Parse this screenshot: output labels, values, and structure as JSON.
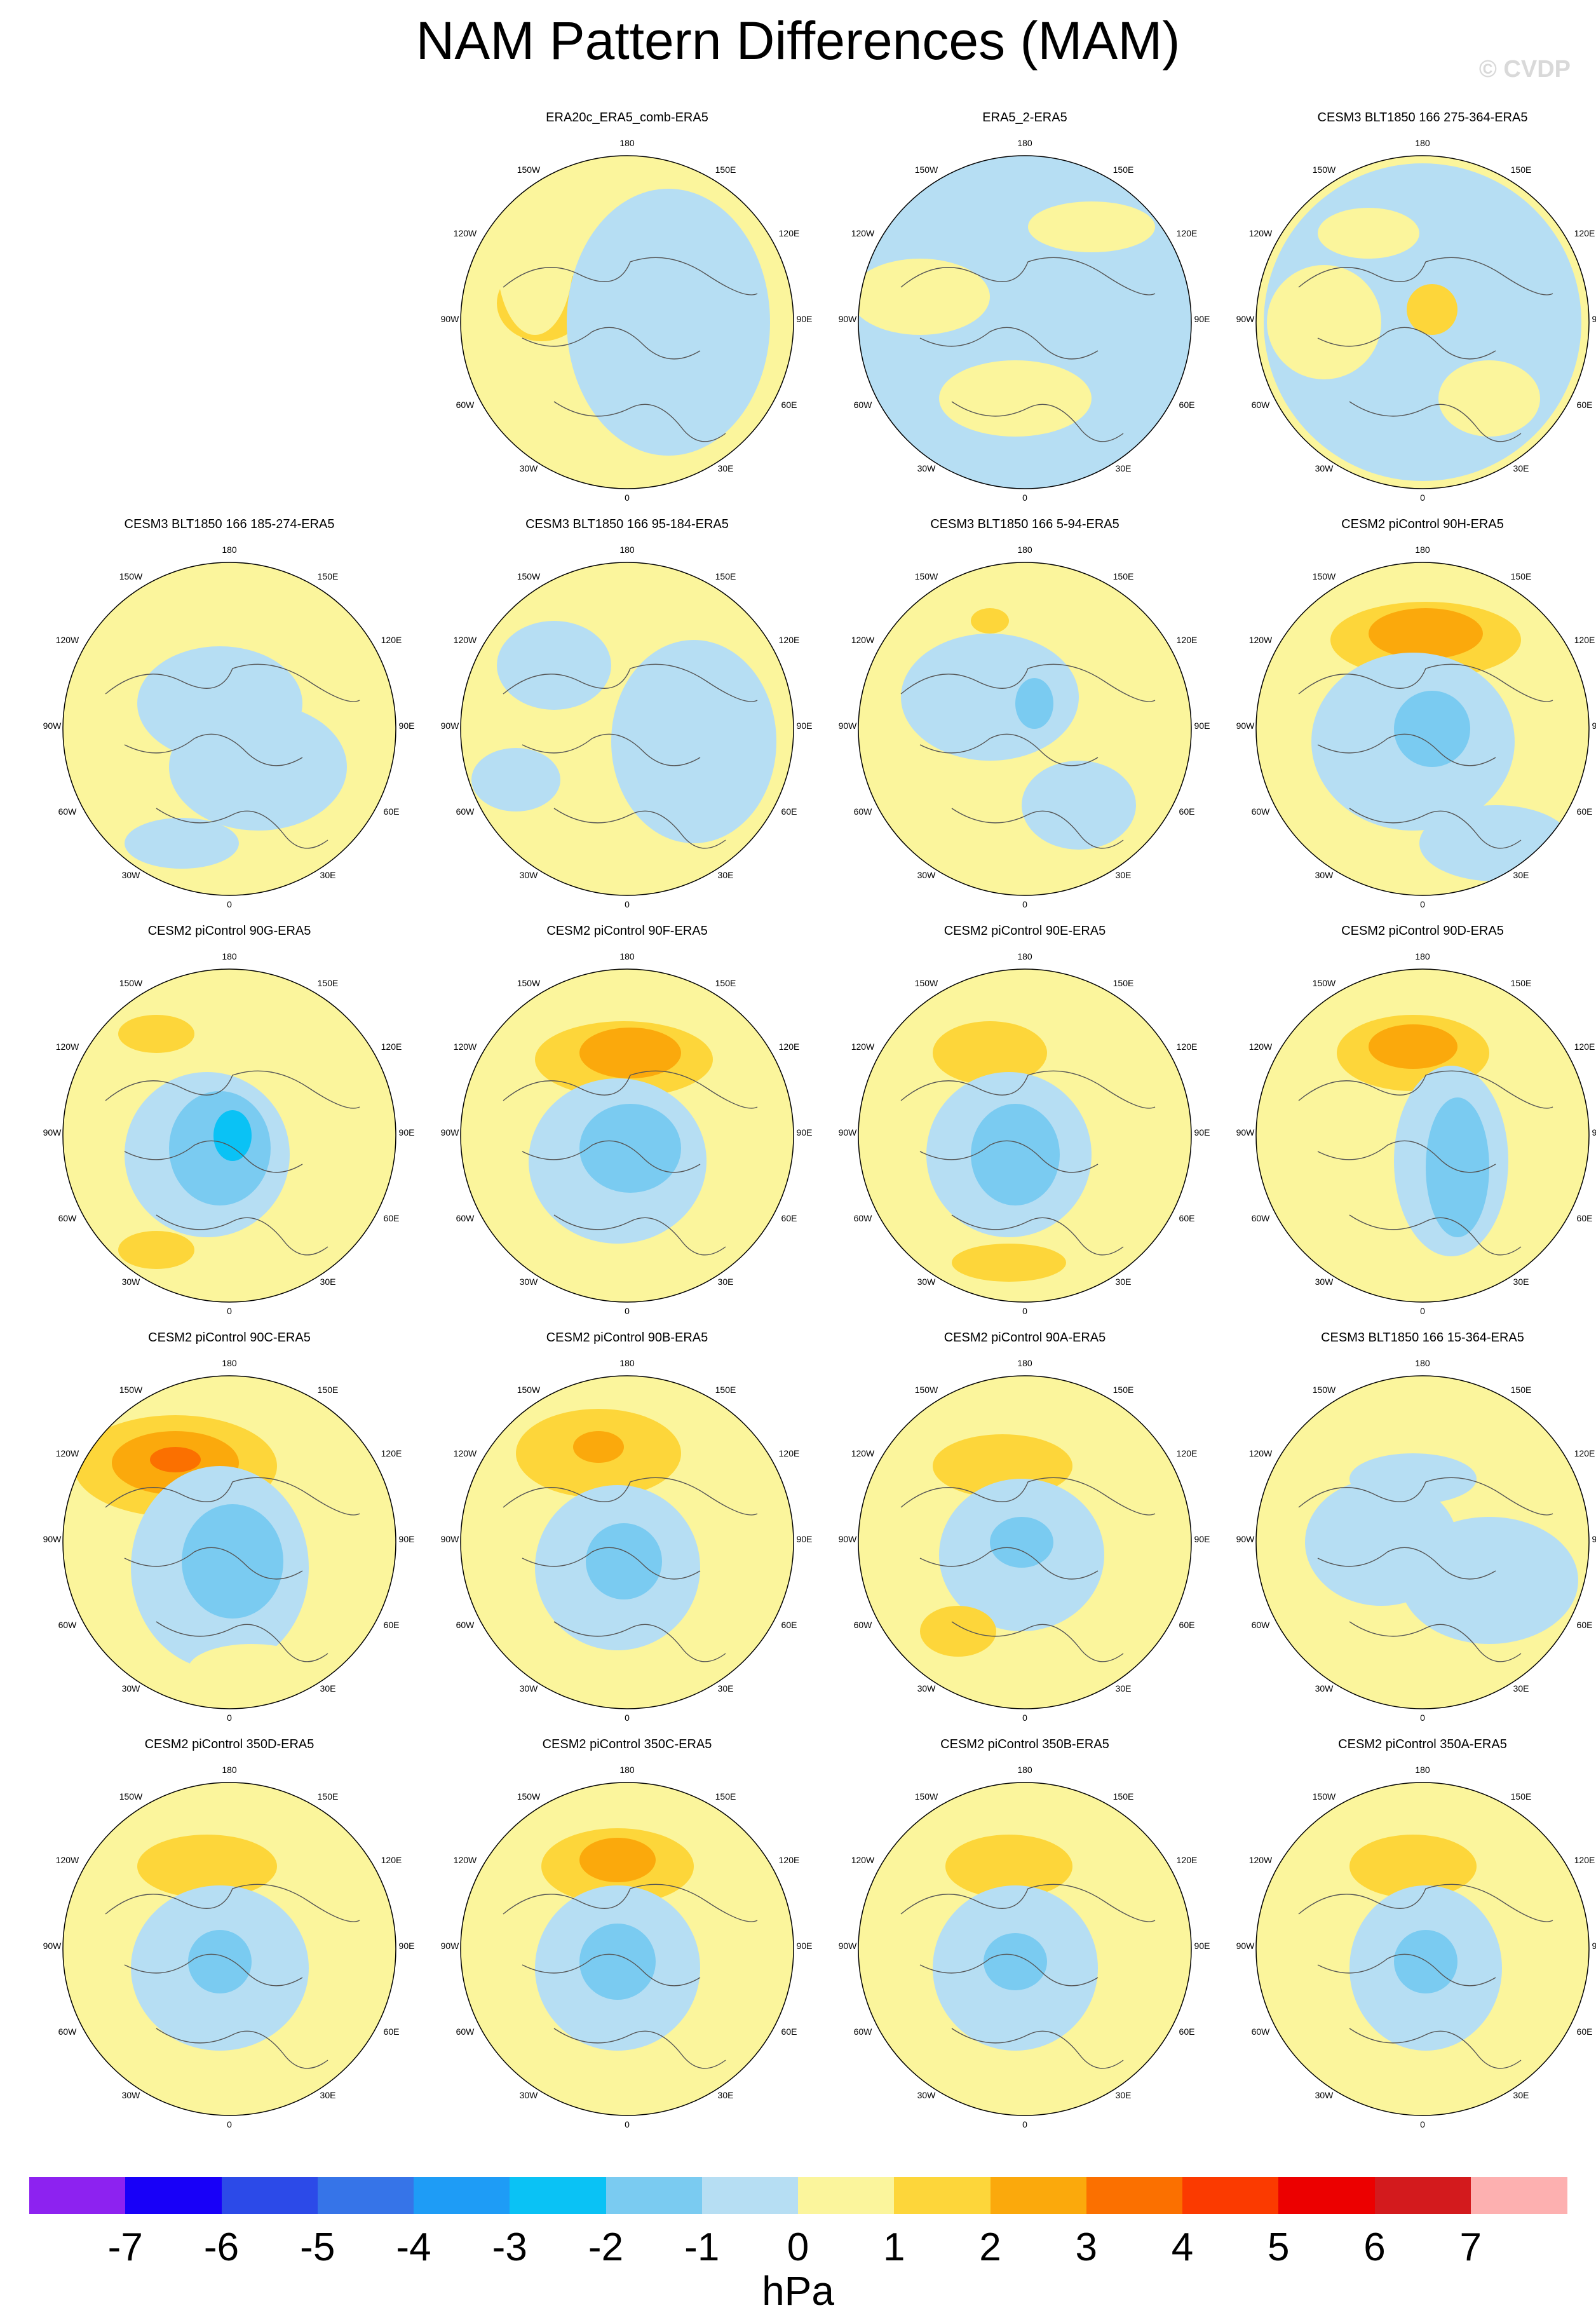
{
  "figure": {
    "title": "NAM Pattern Differences (MAM)",
    "watermark": "© CVDP",
    "units": "hPa"
  },
  "map_labels": {
    "top": "180",
    "top_left": "150W",
    "top_right": "150E",
    "upper_left": "120W",
    "upper_right": "120E",
    "left": "90W",
    "right": "90E",
    "lower_left": "60W",
    "lower_right": "60E",
    "bottom_left": "30W",
    "bottom_right": "30E",
    "bottom": "0"
  },
  "colorbar": {
    "ticks": [
      "-7",
      "-6",
      "-5",
      "-4",
      "-3",
      "-2",
      "-1",
      "0",
      "1",
      "2",
      "3",
      "4",
      "5",
      "6",
      "7"
    ],
    "colors": [
      "#8d22f0",
      "#1800f8",
      "#2c4ae8",
      "#3674e8",
      "#1e9cf6",
      "#0ac2f5",
      "#7acbf1",
      "#b6def3",
      "#fbf59c",
      "#fdd63a",
      "#fba90c",
      "#fb7000",
      "#fb3a00",
      "#ec0000",
      "#d31a1d",
      "#fdb0b0"
    ]
  },
  "panels": [
    {
      "title": "ERA20c_ERA5_comb-ERA5",
      "base": "mixed",
      "blobs": []
    },
    {
      "title": "ERA5_2-ERA5",
      "base": "mixed",
      "blobs": []
    },
    {
      "title": "CESM3 BLT1850 166 275-364-ERA5",
      "base": "mixed",
      "blobs": []
    },
    {
      "title": "CESM3 BLT1850 166 185-274-ERA5",
      "base": "mixed",
      "blobs": []
    },
    {
      "title": "CESM3 BLT1850 166 95-184-ERA5",
      "base": "mixed",
      "blobs": []
    },
    {
      "title": "CESM3 BLT1850 166 5-94-ERA5",
      "base": "mixed",
      "blobs": []
    },
    {
      "title": "CESM2 piControl 90H-ERA5",
      "base": "mixed",
      "blobs": []
    },
    {
      "title": "CESM2 piControl 90G-ERA5",
      "base": "mixed",
      "blobs": []
    },
    {
      "title": "CESM2 piControl 90F-ERA5",
      "base": "mixed",
      "blobs": []
    },
    {
      "title": "CESM2 piControl 90E-ERA5",
      "base": "mixed",
      "blobs": []
    },
    {
      "title": "CESM2 piControl 90D-ERA5",
      "base": "mixed",
      "blobs": []
    },
    {
      "title": "CESM2 piControl 90C-ERA5",
      "base": "mixed",
      "blobs": []
    },
    {
      "title": "CESM2 piControl 90B-ERA5",
      "base": "mixed",
      "blobs": []
    },
    {
      "title": "CESM2 piControl 90A-ERA5",
      "base": "mixed",
      "blobs": []
    },
    {
      "title": "CESM3 BLT1850 166 15-364-ERA5",
      "base": "mixed",
      "blobs": []
    },
    {
      "title": "CESM2 piControl 350D-ERA5",
      "base": "mixed",
      "blobs": []
    },
    {
      "title": "CESM2 piControl 350C-ERA5",
      "base": "mixed",
      "blobs": []
    },
    {
      "title": "CESM2 piControl 350B-ERA5",
      "base": "mixed",
      "blobs": []
    },
    {
      "title": "CESM2 piControl 350A-ERA5",
      "base": "mixed",
      "blobs": []
    }
  ]
}
